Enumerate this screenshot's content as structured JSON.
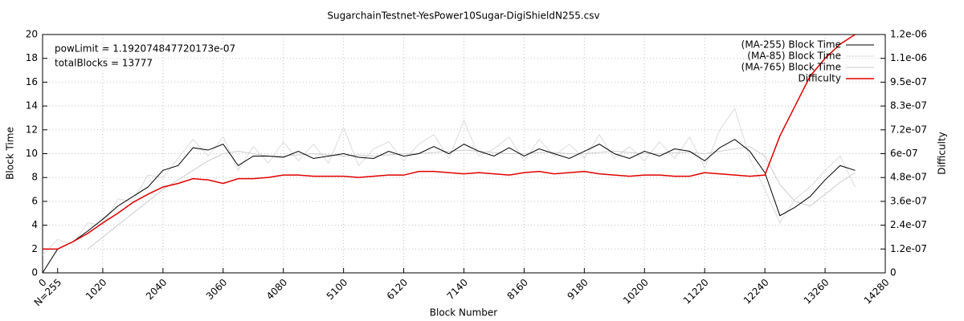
{
  "chart_data": {
    "type": "line",
    "title": "SugarchainTestnet-YesPower10Sugar-DigiShieldN255.csv",
    "xlabel": "Block Number",
    "ylabel": "Block Time",
    "y2label": "Difficulty",
    "annotations": [
      "powLimit = 1.192074847720173e-07",
      "totalBlocks = 13777"
    ],
    "x": [
      0,
      255,
      510,
      765,
      1020,
      1275,
      1530,
      1785,
      2040,
      2295,
      2550,
      2805,
      3060,
      3315,
      3570,
      3825,
      4080,
      4335,
      4590,
      4845,
      5100,
      5355,
      5610,
      5865,
      6120,
      6375,
      6630,
      6885,
      7140,
      7395,
      7650,
      7905,
      8160,
      8415,
      8670,
      8925,
      9180,
      9435,
      9690,
      9945,
      10200,
      10455,
      10710,
      10965,
      11220,
      11475,
      11730,
      11985,
      12240,
      12495,
      12750,
      13005,
      13260,
      13515,
      13770
    ],
    "series": [
      {
        "name": "(MA-255) Block Time",
        "color": "#000000",
        "values": [
          0,
          2.0,
          2.6,
          3.5,
          4.5,
          5.6,
          6.4,
          7.2,
          8.6,
          9.0,
          10.5,
          10.3,
          10.8,
          9.0,
          9.8,
          9.8,
          9.7,
          10.2,
          9.6,
          9.8,
          10.0,
          9.7,
          9.6,
          10.2,
          9.8,
          10.0,
          10.6,
          10.0,
          10.8,
          10.2,
          9.8,
          10.5,
          9.8,
          10.4,
          10.0,
          9.6,
          10.2,
          10.8,
          10.0,
          9.6,
          10.2,
          9.8,
          10.4,
          10.2,
          9.4,
          10.5,
          11.2,
          10.2,
          8.4,
          4.8,
          5.5,
          6.4,
          7.8,
          9.0,
          8.6
        ]
      },
      {
        "name": "(MA-85) Block Time",
        "color": "#dcdcdc",
        "values": [
          1.5,
          2.8,
          2.4,
          4.2,
          4.0,
          6.2,
          6.0,
          8.2,
          8.0,
          9.6,
          11.2,
          9.8,
          11.4,
          8.6,
          10.6,
          9.2,
          11.0,
          9.4,
          10.8,
          9.2,
          12.2,
          9.0,
          10.4,
          11.0,
          9.4,
          10.8,
          11.6,
          9.6,
          12.8,
          9.8,
          10.4,
          11.4,
          9.4,
          11.2,
          9.8,
          10.8,
          9.6,
          11.6,
          9.6,
          10.6,
          9.4,
          11.0,
          9.6,
          11.4,
          8.8,
          12.0,
          13.8,
          9.6,
          7.0,
          4.2,
          6.2,
          7.2,
          8.6,
          9.8,
          7.2
        ]
      },
      {
        "name": "(MA-765) Block Time",
        "color": "#cccccc",
        "values": [
          null,
          null,
          null,
          2.0,
          3.0,
          4.0,
          5.0,
          6.0,
          7.0,
          7.8,
          8.6,
          9.4,
          10.0,
          10.2,
          10.0,
          9.8,
          9.8,
          9.9,
          10.0,
          9.9,
          9.8,
          9.9,
          9.8,
          9.9,
          10.0,
          10.0,
          10.1,
          10.2,
          10.3,
          10.2,
          10.1,
          10.0,
          10.0,
          10.1,
          10.1,
          10.0,
          10.0,
          10.1,
          10.2,
          10.1,
          10.0,
          10.0,
          10.1,
          10.1,
          10.0,
          10.2,
          10.4,
          10.6,
          9.8,
          7.4,
          6.0,
          5.6,
          6.6,
          7.6,
          8.4
        ]
      },
      {
        "name": "Difficulty",
        "color": "#e00000",
        "axis": "y2",
        "values": [
          1.19e-07,
          1.19e-07,
          1.55e-07,
          1.97e-07,
          2.5e-07,
          2.98e-07,
          3.52e-07,
          3.93e-07,
          4.29e-07,
          4.47e-07,
          4.71e-07,
          4.65e-07,
          4.47e-07,
          4.71e-07,
          4.71e-07,
          4.77e-07,
          4.89e-07,
          4.89e-07,
          4.83e-07,
          4.83e-07,
          4.83e-07,
          4.77e-07,
          4.83e-07,
          4.89e-07,
          4.89e-07,
          5.07e-07,
          5.07e-07,
          5.01e-07,
          4.95e-07,
          5.01e-07,
          4.95e-07,
          4.89e-07,
          5.01e-07,
          5.07e-07,
          4.95e-07,
          5.01e-07,
          5.07e-07,
          4.95e-07,
          4.89e-07,
          4.83e-07,
          4.89e-07,
          4.89e-07,
          4.83e-07,
          4.83e-07,
          5.01e-07,
          4.95e-07,
          4.89e-07,
          4.83e-07,
          4.89e-07,
          6.85e-07,
          8.34e-07,
          9.83e-07,
          1.073e-06,
          1.144e-06,
          1.192e-06
        ]
      }
    ],
    "xlim": [
      0,
      14280
    ],
    "xticks": [
      0,
      {
        "value": 255,
        "label": "N=255"
      },
      1020,
      2040,
      3060,
      4080,
      5100,
      6120,
      7140,
      8160,
      9180,
      10200,
      11220,
      12240,
      13260,
      14280
    ],
    "ylim": [
      0,
      20
    ],
    "yticks": [
      0,
      2,
      4,
      6,
      8,
      10,
      12,
      14,
      16,
      18,
      20
    ],
    "y2lim": [
      0,
      1.192074847720173e-06
    ],
    "y2ticks": [
      0,
      {
        "value": 1.192074847720173e-07,
        "label": "1.2e-07"
      },
      {
        "value": 2.384149695440346e-07,
        "label": "2.4e-07"
      },
      {
        "value": 3.576224543160519e-07,
        "label": "3.6e-07"
      },
      {
        "value": 4.768299390880692e-07,
        "label": "4.8e-07"
      },
      {
        "value": 5.960374238600865e-07,
        "label": "6e-07"
      },
      {
        "value": 7.152449086321038e-07,
        "label": "7.2e-07"
      },
      {
        "value": 8.344523934041211e-07,
        "label": "8.3e-07"
      },
      {
        "value": 9.536598781761384e-07,
        "label": "9.5e-07"
      },
      {
        "value": 1.0728673629481557e-06,
        "label": "1.1e-06"
      },
      {
        "value": 1.192074847720173e-06,
        "label": "1.2e-06"
      }
    ],
    "grid": true,
    "legend": "top-right"
  }
}
